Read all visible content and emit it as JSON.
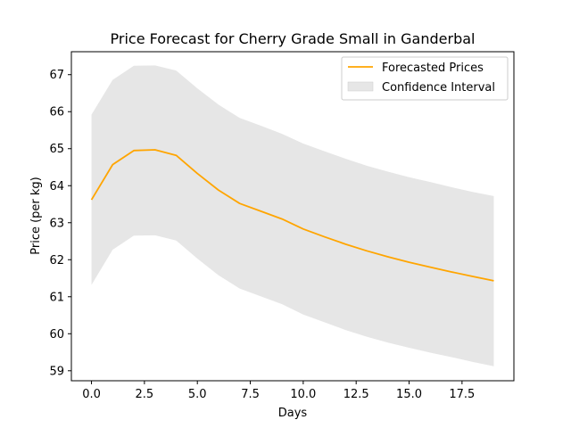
{
  "chart_data": {
    "type": "line",
    "title": "Price Forecast for Cherry Grade Small in Ganderbal",
    "xlabel": "Days",
    "ylabel": "Price (per kg)",
    "xlim": [
      -0.95,
      19.95
    ],
    "ylim": [
      58.73,
      67.62
    ],
    "x": [
      0,
      1,
      2,
      3,
      4,
      5,
      6,
      7,
      8,
      9,
      10,
      11,
      12,
      13,
      14,
      15,
      16,
      17,
      18,
      19
    ],
    "series": [
      {
        "name": "Forecasted Prices",
        "color": "#ffa500",
        "values": [
          63.62,
          64.57,
          64.95,
          64.97,
          64.82,
          64.33,
          63.88,
          63.52,
          63.31,
          63.1,
          62.83,
          62.62,
          62.42,
          62.24,
          62.08,
          61.93,
          61.8,
          61.67,
          61.55,
          61.43
        ]
      }
    ],
    "band": {
      "name": "Confidence Interval",
      "color": "#e6e6e6",
      "upper": [
        65.92,
        66.86,
        67.24,
        67.25,
        67.11,
        66.63,
        66.19,
        65.83,
        65.62,
        65.4,
        65.14,
        64.93,
        64.73,
        64.54,
        64.38,
        64.23,
        64.1,
        63.96,
        63.83,
        63.72
      ],
      "lower": [
        61.32,
        62.27,
        62.65,
        62.66,
        62.52,
        62.03,
        61.58,
        61.22,
        61.01,
        60.8,
        60.52,
        60.31,
        60.1,
        59.92,
        59.76,
        59.62,
        59.49,
        59.37,
        59.24,
        59.12
      ]
    },
    "xticks": [
      0,
      2.5,
      5,
      7.5,
      10,
      12.5,
      15,
      17.5
    ],
    "xtick_labels": [
      "0.0",
      "2.5",
      "5.0",
      "7.5",
      "10.0",
      "12.5",
      "15.0",
      "17.5"
    ],
    "yticks": [
      59,
      60,
      61,
      62,
      63,
      64,
      65,
      66,
      67
    ],
    "ytick_labels": [
      "59",
      "60",
      "61",
      "62",
      "63",
      "64",
      "65",
      "66",
      "67"
    ],
    "grid": false,
    "legend_position": "top-right"
  }
}
